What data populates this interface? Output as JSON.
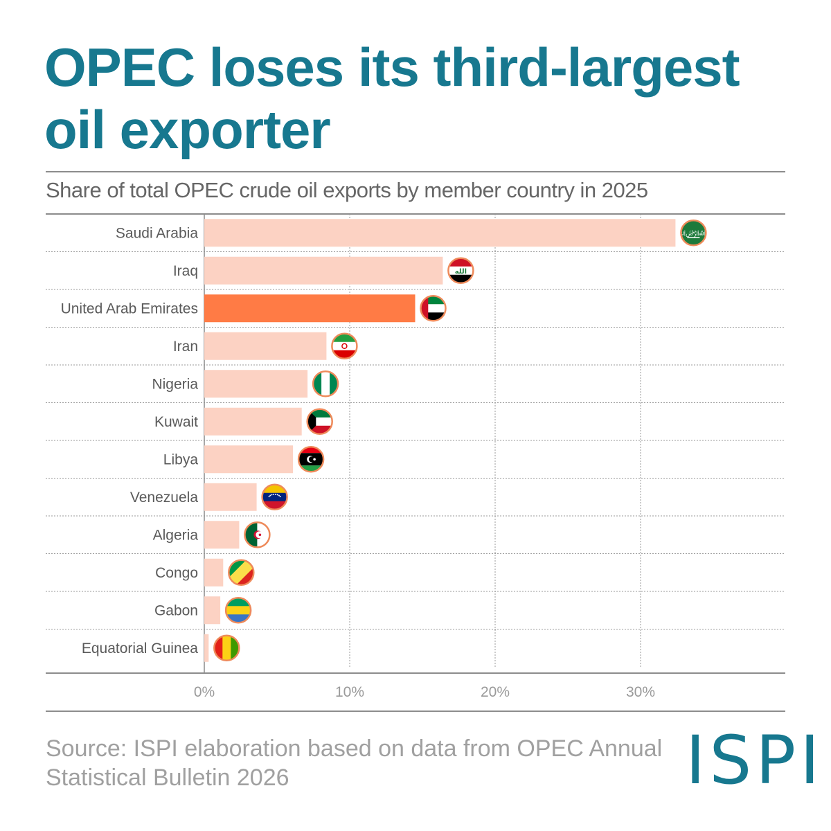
{
  "title": "OPEC loses its third-largest oil exporter",
  "subtitle": "Share of total OPEC crude oil exports by member country in 2025",
  "source": "Source: ISPI elaboration based on data from OPEC Annual Statistical Bulletin 2026",
  "logo": "ISPI",
  "colors": {
    "bar": "#fcd2c3",
    "highlight": "#ff7b45",
    "title": "#17788f",
    "ring": "#ee8a5a"
  },
  "chart_data": {
    "type": "bar",
    "orientation": "horizontal",
    "title": "Share of total OPEC crude oil exports by member country in 2025",
    "categories": [
      "Saudi Arabia",
      "Iraq",
      "United  Arab Emirates",
      "Iran",
      "Nigeria",
      "Kuwait",
      "Libya",
      "Venezuela",
      "Algeria",
      "Congo",
      "Gabon",
      "Equatorial Guinea"
    ],
    "values": [
      32.4,
      16.4,
      14.5,
      8.4,
      7.1,
      6.7,
      6.1,
      3.6,
      2.4,
      1.3,
      1.1,
      0.3
    ],
    "highlight": "United  Arab Emirates",
    "unit": "%",
    "xlim": [
      0,
      40
    ],
    "xticks": [
      0,
      10,
      20,
      30
    ],
    "xtick_labels": [
      "0%",
      "10%",
      "20%",
      "30%"
    ],
    "grid": true,
    "flags": [
      "saudi-arabia-flag-icon",
      "iraq-flag-icon",
      "uae-flag-icon",
      "iran-flag-icon",
      "nigeria-flag-icon",
      "kuwait-flag-icon",
      "libya-flag-icon",
      "venezuela-flag-icon",
      "algeria-flag-icon",
      "congo-flag-icon",
      "gabon-flag-icon",
      "equatorial-guinea-flag-icon"
    ]
  }
}
